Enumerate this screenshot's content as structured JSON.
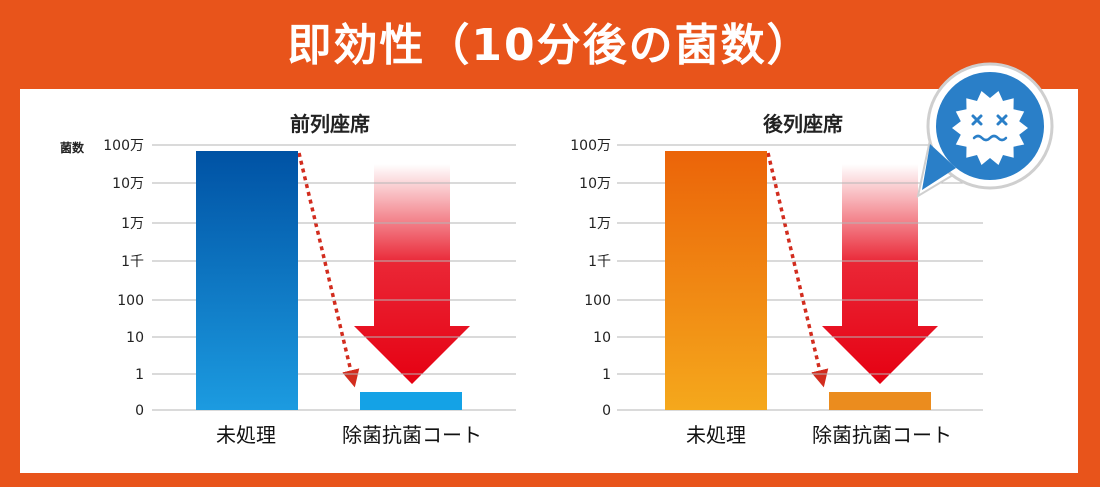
{
  "title": "即効性（10分後の菌数）",
  "colors": {
    "frame": "#e8541b",
    "arrow_red": "#e60012",
    "dotted_arrow": "#d22c1e",
    "untreated_blue_top": "#0052a4",
    "untreated_blue_bottom": "#1c9be0",
    "untreated_orange_top": "#eb6409",
    "untreated_orange_bottom": "#f5a81c",
    "coated_blue": "#14a2e6",
    "coated_orange": "#eb8c1e",
    "bubble": "#2a7fc8"
  },
  "icons": [
    "germ-icon",
    "speech-bubble-icon"
  ],
  "chart_data": [
    {
      "type": "bar",
      "title": "前列座席",
      "ylabel": "菌数",
      "yscale": "log",
      "yticks": [
        "100万",
        "10万",
        "1万",
        "1千",
        "100",
        "10",
        "1",
        "0"
      ],
      "categories": [
        "未処理",
        "除菌抗菌コート"
      ],
      "values": [
        1000000,
        0.5
      ],
      "grid": true
    },
    {
      "type": "bar",
      "title": "後列座席",
      "ylabel": "",
      "yscale": "log",
      "yticks": [
        "100万",
        "10万",
        "1万",
        "1千",
        "100",
        "10",
        "1",
        "0"
      ],
      "categories": [
        "未処理",
        "除菌抗菌コート"
      ],
      "values": [
        1000000,
        0.5
      ],
      "grid": true
    }
  ]
}
